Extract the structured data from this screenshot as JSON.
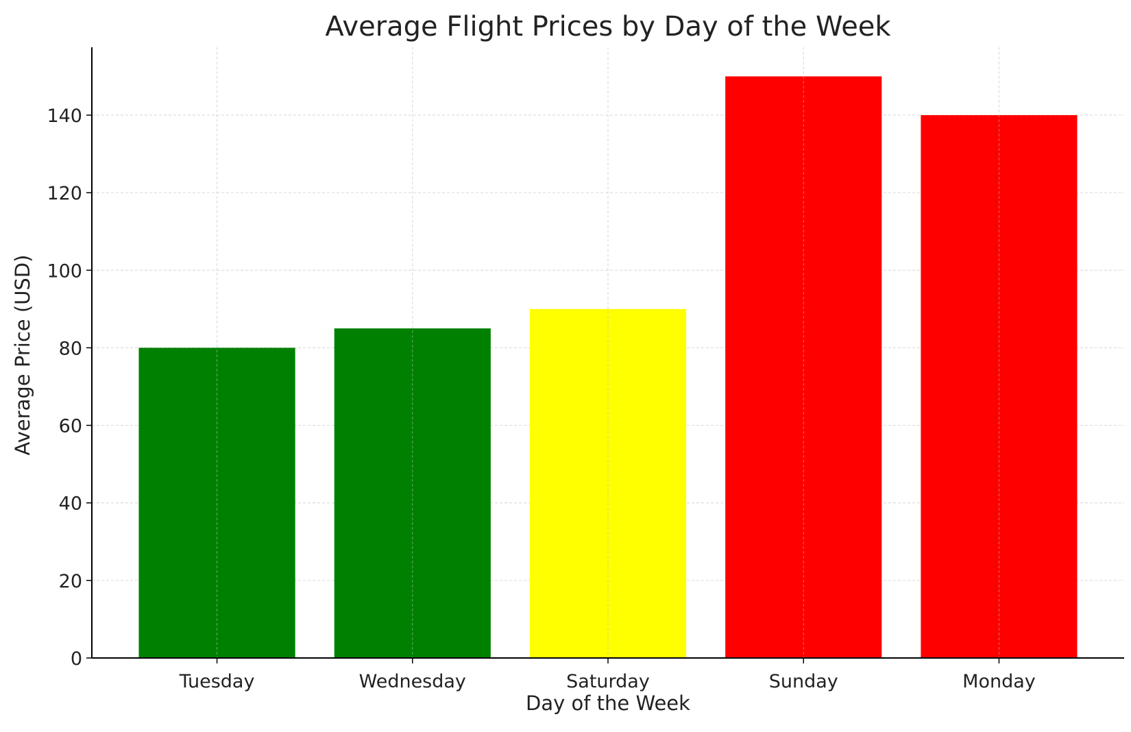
{
  "chart_data": {
    "type": "bar",
    "title": "Average Flight Prices by Day of the Week",
    "xlabel": "Day of the Week",
    "ylabel": "Average Price (USD)",
    "categories": [
      "Tuesday",
      "Wednesday",
      "Saturday",
      "Sunday",
      "Monday"
    ],
    "values": [
      80,
      85,
      90,
      150,
      140
    ],
    "colors": [
      "#008000",
      "#008000",
      "#ffff00",
      "#ff0000",
      "#ff0000"
    ],
    "ylim": [
      0,
      157.5
    ],
    "yticks": [
      0,
      20,
      40,
      60,
      80,
      100,
      120,
      140
    ],
    "grid": true,
    "legend": "none"
  }
}
